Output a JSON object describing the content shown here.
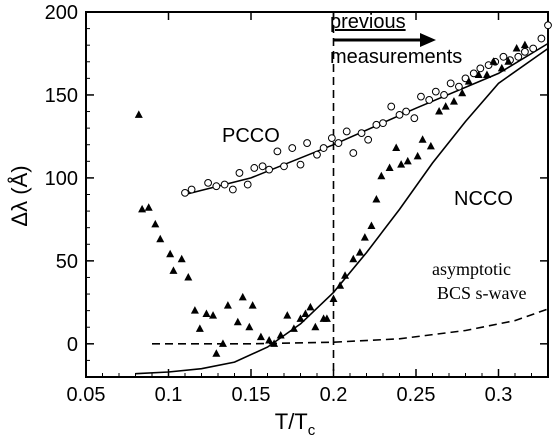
{
  "chart_data": {
    "type": "scatter",
    "xlabel": "T/T",
    "xlabel_sub": "c",
    "ylabel": "Δλ (Å)",
    "xlim": [
      0.05,
      0.33
    ],
    "ylim": [
      -20,
      200
    ],
    "xticks": [
      {
        "value": 0.05,
        "label": "0.05"
      },
      {
        "value": 0.1,
        "label": "0.1"
      },
      {
        "value": 0.15,
        "label": "0.15"
      },
      {
        "value": 0.2,
        "label": "0.2"
      },
      {
        "value": 0.25,
        "label": "0.25"
      },
      {
        "value": 0.3,
        "label": "0.3"
      }
    ],
    "yticks": [
      {
        "value": 0,
        "label": "0"
      },
      {
        "value": 50,
        "label": "50"
      },
      {
        "value": 100,
        "label": "100"
      },
      {
        "value": 150,
        "label": "150"
      },
      {
        "value": 200,
        "label": "200"
      }
    ],
    "grid": false,
    "series": [
      {
        "name": "PCCO",
        "marker": "open-circle",
        "points": [
          [
            0.11,
            91
          ],
          [
            0.114,
            93
          ],
          [
            0.124,
            97
          ],
          [
            0.129,
            95
          ],
          [
            0.134,
            96
          ],
          [
            0.139,
            93
          ],
          [
            0.143,
            103
          ],
          [
            0.148,
            96
          ],
          [
            0.152,
            106
          ],
          [
            0.157,
            107
          ],
          [
            0.161,
            105
          ],
          [
            0.166,
            116
          ],
          [
            0.17,
            107
          ],
          [
            0.175,
            118
          ],
          [
            0.18,
            108
          ],
          [
            0.184,
            121
          ],
          [
            0.19,
            114
          ],
          [
            0.194,
            118
          ],
          [
            0.199,
            124
          ],
          [
            0.203,
            121
          ],
          [
            0.208,
            128
          ],
          [
            0.212,
            115
          ],
          [
            0.217,
            127
          ],
          [
            0.221,
            123
          ],
          [
            0.226,
            132
          ],
          [
            0.23,
            133
          ],
          [
            0.235,
            143
          ],
          [
            0.24,
            138
          ],
          [
            0.244,
            140
          ],
          [
            0.249,
            136
          ],
          [
            0.253,
            149
          ],
          [
            0.258,
            147
          ],
          [
            0.262,
            152
          ],
          [
            0.267,
            150
          ],
          [
            0.271,
            157
          ],
          [
            0.276,
            155
          ],
          [
            0.28,
            160
          ],
          [
            0.285,
            163
          ],
          [
            0.289,
            166
          ],
          [
            0.294,
            168
          ],
          [
            0.298,
            170
          ],
          [
            0.303,
            173
          ],
          [
            0.307,
            171
          ],
          [
            0.312,
            173
          ],
          [
            0.316,
            176
          ],
          [
            0.321,
            178
          ],
          [
            0.326,
            184
          ],
          [
            0.33,
            192
          ]
        ]
      },
      {
        "name": "NCCO",
        "marker": "filled-triangle",
        "points": [
          [
            0.082,
            138
          ],
          [
            0.084,
            81
          ],
          [
            0.088,
            82
          ],
          [
            0.092,
            72
          ],
          [
            0.095,
            63
          ],
          [
            0.101,
            54
          ],
          [
            0.103,
            44
          ],
          [
            0.108,
            51
          ],
          [
            0.112,
            40
          ],
          [
            0.116,
            20
          ],
          [
            0.119,
            9
          ],
          [
            0.123,
            18
          ],
          [
            0.127,
            17
          ],
          [
            0.129,
            -6
          ],
          [
            0.133,
            0
          ],
          [
            0.136,
            23
          ],
          [
            0.142,
            13
          ],
          [
            0.145,
            28
          ],
          [
            0.149,
            10
          ],
          [
            0.151,
            23
          ],
          [
            0.156,
            4
          ],
          [
            0.161,
            2
          ],
          [
            0.164,
            0
          ],
          [
            0.168,
            5
          ],
          [
            0.172,
            17
          ],
          [
            0.176,
            9
          ],
          [
            0.18,
            15
          ],
          [
            0.183,
            18
          ],
          [
            0.186,
            22
          ],
          [
            0.189,
            10
          ],
          [
            0.194,
            15
          ],
          [
            0.196,
            15
          ],
          [
            0.2,
            27
          ],
          [
            0.204,
            35
          ],
          [
            0.207,
            41
          ],
          [
            0.212,
            51
          ],
          [
            0.216,
            55
          ],
          [
            0.219,
            64
          ],
          [
            0.223,
            71
          ],
          [
            0.226,
            87
          ],
          [
            0.229,
            101
          ],
          [
            0.234,
            106
          ],
          [
            0.238,
            118
          ],
          [
            0.241,
            108
          ],
          [
            0.245,
            110
          ],
          [
            0.251,
            113
          ],
          [
            0.254,
            123
          ],
          [
            0.259,
            119
          ],
          [
            0.264,
            140
          ],
          [
            0.268,
            143
          ],
          [
            0.273,
            146
          ],
          [
            0.278,
            151
          ],
          [
            0.282,
            158
          ],
          [
            0.288,
            162
          ],
          [
            0.293,
            162
          ],
          [
            0.297,
            170
          ],
          [
            0.302,
            166
          ],
          [
            0.306,
            170
          ],
          [
            0.311,
            178
          ],
          [
            0.316,
            180
          ]
        ]
      }
    ],
    "curves": [
      {
        "id": "pcco-fit",
        "style": "solid",
        "points": [
          [
            0.11,
            90
          ],
          [
            0.15,
            100
          ],
          [
            0.2,
            120
          ],
          [
            0.25,
            142
          ],
          [
            0.3,
            163
          ],
          [
            0.33,
            181
          ]
        ]
      },
      {
        "id": "ncco-fit",
        "style": "solid",
        "points": [
          [
            0.08,
            -18
          ],
          [
            0.1,
            -17
          ],
          [
            0.12,
            -15
          ],
          [
            0.14,
            -11
          ],
          [
            0.16,
            -2
          ],
          [
            0.18,
            12
          ],
          [
            0.2,
            31
          ],
          [
            0.22,
            55
          ],
          [
            0.24,
            81
          ],
          [
            0.26,
            109
          ],
          [
            0.28,
            134
          ],
          [
            0.3,
            157
          ],
          [
            0.33,
            178
          ]
        ]
      },
      {
        "id": "bcs-asymptotic",
        "style": "dashed",
        "points": [
          [
            0.09,
            0
          ],
          [
            0.15,
            0
          ],
          [
            0.2,
            1
          ],
          [
            0.24,
            3
          ],
          [
            0.28,
            8
          ],
          [
            0.31,
            14
          ],
          [
            0.33,
            21
          ]
        ]
      }
    ],
    "reference_line": {
      "x": 0.2,
      "style": "dashed"
    },
    "annotations": {
      "pcco": "PCCO",
      "ncco": "NCCO",
      "previous_line1": "previous",
      "previous_line2": "measurements",
      "bcs_line1": "asymptotic",
      "bcs_line2": "BCS s-wave"
    }
  }
}
